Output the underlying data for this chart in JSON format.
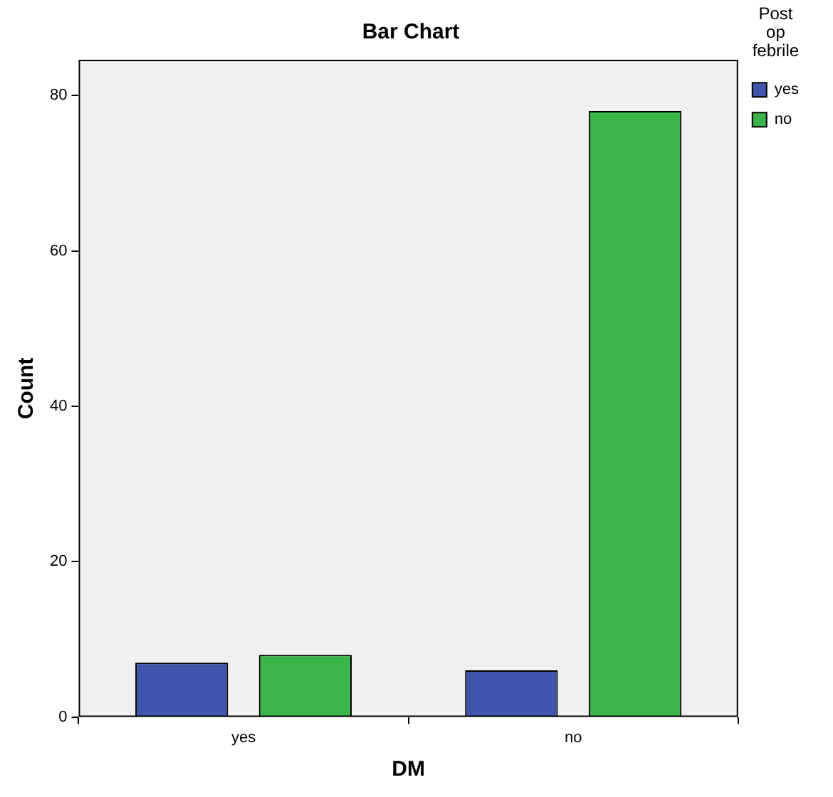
{
  "chart_data": {
    "type": "bar",
    "title": "Bar Chart",
    "xlabel": "DM",
    "ylabel": "Count",
    "legend_title": "Post op febrile",
    "legend": "top right",
    "categories": [
      "yes",
      "no"
    ],
    "series": [
      {
        "name": "yes",
        "color": "#3e55ab",
        "values": [
          7,
          6
        ]
      },
      {
        "name": "no",
        "color": "#3bb54a",
        "values": [
          8,
          78
        ]
      }
    ],
    "ylim": [
      0,
      84.6
    ],
    "yticks": [
      0,
      20,
      40,
      60,
      80
    ]
  }
}
